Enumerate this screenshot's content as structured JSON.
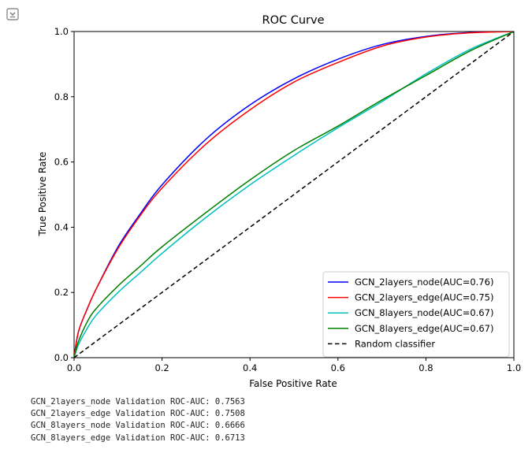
{
  "colors": {
    "series": [
      "#0000ff",
      "#ff0000",
      "#00bfbf",
      "#008000"
    ],
    "baseline": "#000000"
  },
  "cell_toggle_icon": "collapse-output-icon",
  "chart_data": {
    "type": "line",
    "title": "ROC Curve",
    "xlabel": "False Positive Rate",
    "ylabel": "True Positive Rate",
    "xlim": [
      0,
      1
    ],
    "ylim": [
      0,
      1
    ],
    "xticks": [
      "0.0",
      "0.2",
      "0.4",
      "0.6",
      "0.8",
      "1.0"
    ],
    "yticks": [
      "0.0",
      "0.2",
      "0.4",
      "0.6",
      "0.8",
      "1.0"
    ],
    "grid": false,
    "legend_position": "lower-right",
    "series": [
      {
        "name": "GCN_2layers_node(AUC=0.76)",
        "x": [
          0,
          0.01,
          0.03,
          0.05,
          0.1,
          0.15,
          0.2,
          0.3,
          0.4,
          0.5,
          0.6,
          0.7,
          0.8,
          0.9,
          1.0
        ],
        "y": [
          0,
          0.08,
          0.15,
          0.21,
          0.34,
          0.44,
          0.53,
          0.67,
          0.775,
          0.855,
          0.915,
          0.96,
          0.985,
          0.997,
          1.0
        ]
      },
      {
        "name": "GCN_2layers_edge(AUC=0.75)",
        "x": [
          0,
          0.01,
          0.03,
          0.05,
          0.1,
          0.15,
          0.2,
          0.3,
          0.4,
          0.5,
          0.6,
          0.7,
          0.8,
          0.9,
          1.0
        ],
        "y": [
          0,
          0.08,
          0.15,
          0.21,
          0.335,
          0.435,
          0.52,
          0.655,
          0.76,
          0.845,
          0.905,
          0.955,
          0.983,
          0.996,
          1.0
        ]
      },
      {
        "name": "GCN_8layers_node(AUC=0.67)",
        "x": [
          0,
          0.01,
          0.03,
          0.05,
          0.1,
          0.15,
          0.2,
          0.3,
          0.4,
          0.5,
          0.6,
          0.7,
          0.8,
          0.9,
          1.0
        ],
        "y": [
          0,
          0.04,
          0.09,
          0.13,
          0.2,
          0.26,
          0.32,
          0.43,
          0.53,
          0.62,
          0.705,
          0.785,
          0.87,
          0.945,
          1.0
        ]
      },
      {
        "name": "GCN_8layers_edge(AUC=0.67)",
        "x": [
          0,
          0.01,
          0.03,
          0.05,
          0.1,
          0.15,
          0.2,
          0.3,
          0.4,
          0.5,
          0.6,
          0.7,
          0.8,
          0.9,
          1.0
        ],
        "y": [
          0,
          0.05,
          0.11,
          0.15,
          0.22,
          0.28,
          0.34,
          0.445,
          0.545,
          0.635,
          0.71,
          0.79,
          0.865,
          0.94,
          1.0
        ]
      },
      {
        "name": "Random classifier",
        "x": [
          0,
          1
        ],
        "y": [
          0,
          1
        ],
        "dashed": true
      }
    ]
  },
  "output": {
    "lines": [
      "GCN_2layers_node Validation ROC-AUC: 0.7563",
      "GCN_2layers_edge Validation ROC-AUC: 0.7508",
      "GCN_8layers_node Validation ROC-AUC: 0.6666",
      "GCN_8layers_edge Validation ROC-AUC: 0.6713"
    ]
  }
}
